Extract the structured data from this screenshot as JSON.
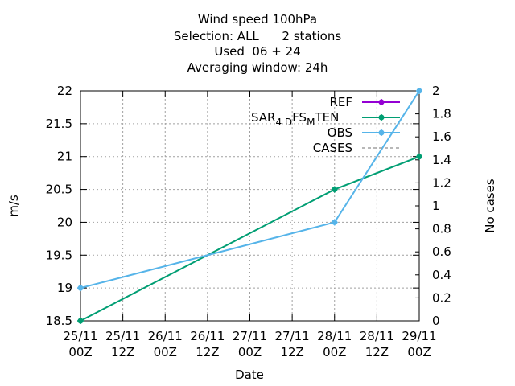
{
  "chart_data": {
    "type": "line",
    "title_lines": [
      "Wind speed 100hPa",
      "Selection: ALL      2 stations",
      "Used  06 + 24",
      "Averaging window: 24h"
    ],
    "xlabel": "Date",
    "ylabel": "m/s",
    "y2label": "No cases",
    "x_ticks": [
      {
        "top": "25/11",
        "bottom": "00Z"
      },
      {
        "top": "25/11",
        "bottom": "12Z"
      },
      {
        "top": "26/11",
        "bottom": "00Z"
      },
      {
        "top": "26/11",
        "bottom": "12Z"
      },
      {
        "top": "27/11",
        "bottom": "00Z"
      },
      {
        "top": "27/11",
        "bottom": "12Z"
      },
      {
        "top": "28/11",
        "bottom": "00Z"
      },
      {
        "top": "28/11",
        "bottom": "12Z"
      },
      {
        "top": "29/11",
        "bottom": "00Z"
      }
    ],
    "ylim": [
      18.5,
      22
    ],
    "y_ticks": [
      "18.5",
      "19",
      "19.5",
      "20",
      "20.5",
      "21",
      "21.5",
      "22"
    ],
    "y2lim": [
      0,
      2
    ],
    "y2_ticks": [
      "0",
      "0.2",
      "0.4",
      "0.6",
      "0.8",
      "1",
      "1.2",
      "1.4",
      "1.6",
      "1.8",
      "2"
    ],
    "grid": true,
    "legend_position": "top-right",
    "series": [
      {
        "name": "REF",
        "color": "#9400d3",
        "x": [],
        "y": [],
        "style": "line-points"
      },
      {
        "name": "SAR_4D FS_M TEN",
        "label_main": "SAR",
        "label_sub1": "4 D",
        "label_mid": "FS",
        "label_sub2": "M",
        "label_tail": "TEN",
        "color": "#009e73",
        "x": [
          "25/11 00Z",
          "28/11 00Z",
          "29/11 00Z"
        ],
        "y": [
          18.5,
          20.5,
          21
        ],
        "style": "line-points"
      },
      {
        "name": "OBS",
        "color": "#56b4e9",
        "x": [
          "25/11 00Z",
          "28/11 00Z",
          "29/11 00Z"
        ],
        "y": [
          19,
          20,
          22
        ],
        "style": "line-points"
      },
      {
        "name": "CASES",
        "color": "#a0a0a0",
        "x": [],
        "y": [],
        "style": "dashed",
        "axis": "y2"
      }
    ]
  }
}
